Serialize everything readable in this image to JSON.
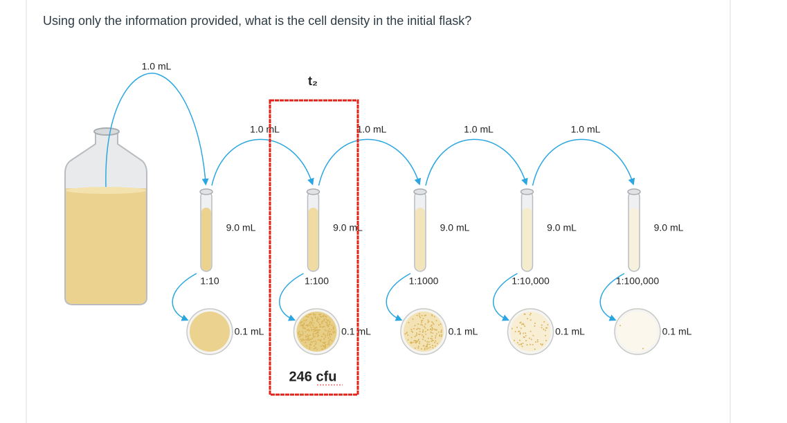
{
  "question": "Using only the information provided, what is the cell density in the initial flask?",
  "flask_transfer": "1.0 mL",
  "marker": "t₂",
  "tubes": [
    {
      "transfer_in": null,
      "volume": "9.0 mL",
      "dilution": "1:10",
      "plated": "0.1 mL"
    },
    {
      "transfer_in": "1.0 mL",
      "volume": "9.0 mL",
      "dilution": "1:100",
      "plated": "0.1 mL"
    },
    {
      "transfer_in": "1.0 mL",
      "volume": "9.0 mL",
      "dilution": "1:1000",
      "plated": "0.1 mL"
    },
    {
      "transfer_in": "1.0 mL",
      "volume": "9.0 mL",
      "dilution": "1:10,000",
      "plated": "0.1 mL"
    },
    {
      "transfer_in": "1.0 mL",
      "volume": "9.0 mL",
      "dilution": "1:100,000",
      "plated": "0.1 mL"
    }
  ],
  "first_transfer": "1.0 mL",
  "count": "246 cfu"
}
